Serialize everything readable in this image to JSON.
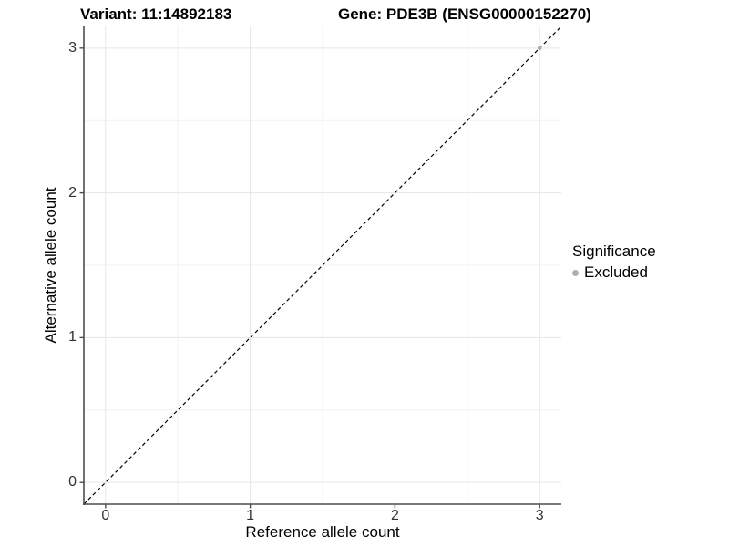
{
  "titles": {
    "variant": "Variant: 11:14892183",
    "gene": "Gene: PDE3B (ENSG00000152270)"
  },
  "chart_data": {
    "type": "scatter",
    "title_left": "Variant: 11:14892183",
    "title_right": "Gene: PDE3B (ENSG00000152270)",
    "xlabel": "Reference allele count",
    "ylabel": "Alternative allele count",
    "x_ticks": [
      0,
      1,
      2,
      3
    ],
    "y_ticks": [
      0,
      1,
      2,
      3
    ],
    "xlim": [
      -0.15,
      3.15
    ],
    "ylim": [
      -0.15,
      3.15
    ],
    "grid": "major and minor gridlines, white panel",
    "identity_line": {
      "style": "dashed",
      "slope": 1,
      "intercept": 0,
      "from": [
        -0.15,
        -0.15
      ],
      "to": [
        3.15,
        3.15
      ]
    },
    "points": [
      {
        "x": 3,
        "y": 3,
        "series": "Excluded"
      }
    ],
    "legend": {
      "title": "Significance",
      "position": "right",
      "items": [
        {
          "label": "Excluded",
          "color": "#b0b0b0"
        }
      ]
    }
  },
  "colors": {
    "panel_background": "#ffffff",
    "grid_major": "#e6e6e6",
    "grid_minor": "#f2f2f2",
    "axis_line": "#4d4d4d",
    "tick_mark": "#4d4d4d",
    "tick_text": "#333333",
    "identity_line": "#000000",
    "point": "#b0b0b0"
  }
}
